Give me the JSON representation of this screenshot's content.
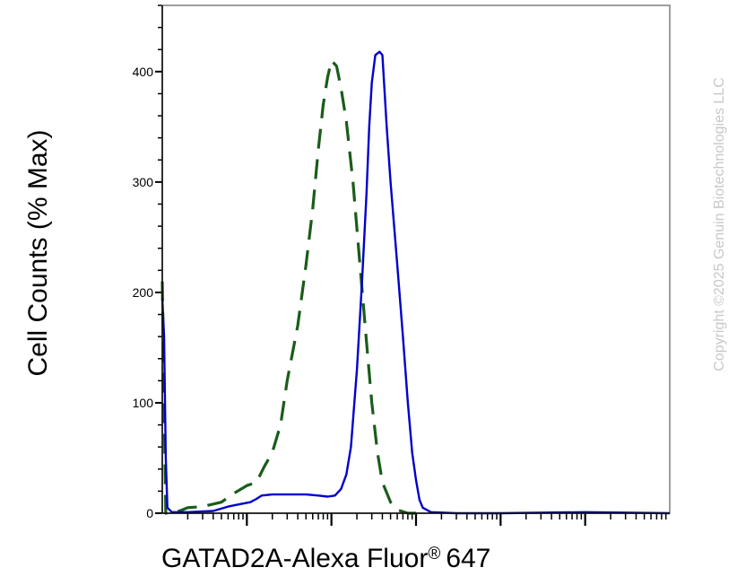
{
  "chart_data": {
    "type": "line",
    "title": "",
    "xlabel": "GATAD2A-Alexa Fluor",
    "xlabel_mark": "®",
    "xlabel_suffix": "647",
    "ylabel": "Cell Counts (% Max)",
    "x_scale": "log",
    "xlim": [
      10,
      10000000
    ],
    "ylim": [
      0,
      460
    ],
    "y_ticks": [
      0,
      100,
      200,
      300,
      400
    ],
    "y_tick_labels": [
      "0",
      "100",
      "200",
      "300",
      "400"
    ],
    "grid": false,
    "legend": "none",
    "series": [
      {
        "style": "dashed",
        "color": "#1a5c1a",
        "points": [
          [
            10,
            210
          ],
          [
            11,
            0
          ],
          [
            16,
            2
          ],
          [
            20,
            5
          ],
          [
            30,
            6
          ],
          [
            50,
            10
          ],
          [
            70,
            18
          ],
          [
            100,
            25
          ],
          [
            130,
            28
          ],
          [
            160,
            42
          ],
          [
            200,
            55
          ],
          [
            250,
            80
          ],
          [
            300,
            120
          ],
          [
            400,
            170
          ],
          [
            500,
            225
          ],
          [
            600,
            275
          ],
          [
            700,
            330
          ],
          [
            800,
            370
          ],
          [
            900,
            395
          ],
          [
            1000,
            410
          ],
          [
            1150,
            405
          ],
          [
            1300,
            385
          ],
          [
            1500,
            355
          ],
          [
            1800,
            300
          ],
          [
            2200,
            220
          ],
          [
            2600,
            155
          ],
          [
            3000,
            100
          ],
          [
            3500,
            55
          ],
          [
            4000,
            28
          ],
          [
            5000,
            10
          ],
          [
            6000,
            3
          ],
          [
            8000,
            0
          ],
          [
            10000,
            0
          ]
        ]
      },
      {
        "style": "solid",
        "color": "#0000cc",
        "points": [
          [
            10,
            195
          ],
          [
            10.5,
            160
          ],
          [
            11,
            50
          ],
          [
            11.5,
            5
          ],
          [
            13,
            1
          ],
          [
            20,
            1
          ],
          [
            40,
            2
          ],
          [
            60,
            6
          ],
          [
            80,
            8
          ],
          [
            110,
            10
          ],
          [
            130,
            13
          ],
          [
            150,
            16
          ],
          [
            200,
            17
          ],
          [
            300,
            17
          ],
          [
            500,
            17
          ],
          [
            700,
            16
          ],
          [
            900,
            15
          ],
          [
            1100,
            16
          ],
          [
            1300,
            22
          ],
          [
            1500,
            35
          ],
          [
            1700,
            60
          ],
          [
            2000,
            130
          ],
          [
            2300,
            210
          ],
          [
            2600,
            290
          ],
          [
            2800,
            350
          ],
          [
            3000,
            390
          ],
          [
            3300,
            415
          ],
          [
            3700,
            418
          ],
          [
            4000,
            415
          ],
          [
            4500,
            350
          ],
          [
            5000,
            300
          ],
          [
            6000,
            225
          ],
          [
            7000,
            160
          ],
          [
            8000,
            100
          ],
          [
            9000,
            55
          ],
          [
            10000,
            30
          ],
          [
            11000,
            12
          ],
          [
            12000,
            5
          ],
          [
            15000,
            1
          ],
          [
            30000,
            0
          ],
          [
            100000,
            0
          ],
          [
            1000000,
            1
          ],
          [
            10000000,
            0
          ]
        ]
      }
    ]
  },
  "watermark": "Copyright ©2025 Genuin Biotechnologies LLC"
}
